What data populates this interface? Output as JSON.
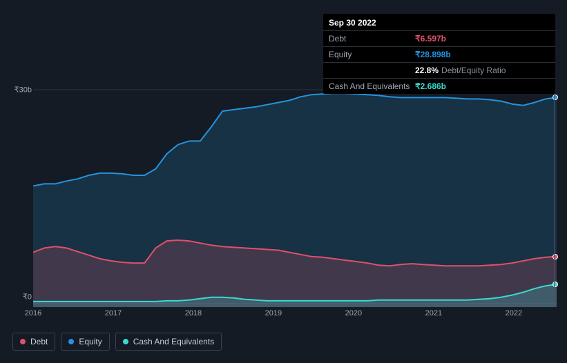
{
  "chart": {
    "type": "area",
    "background_color": "#151b24",
    "plot_background": "#1a2230",
    "grid_color": "#2a3442",
    "yaxis": {
      "labels": [
        "₹30b",
        "₹0"
      ],
      "positions": [
        5,
        305
      ],
      "lim": [
        0,
        30
      ],
      "tick_values": [
        0,
        30
      ]
    },
    "xaxis": {
      "labels": [
        "2016",
        "2017",
        "2018",
        "2019",
        "2020",
        "2021",
        "2022"
      ],
      "positions_pct": [
        0,
        15.3,
        30.6,
        45.9,
        61.2,
        76.5,
        91.8
      ]
    },
    "series": [
      {
        "name": "Equity",
        "color": "#2394df",
        "fill": "rgba(35,148,223,0.18)",
        "values": [
          16.5,
          16.8,
          16.8,
          17.2,
          17.5,
          18.0,
          18.3,
          18.3,
          18.2,
          18.0,
          18.0,
          18.9,
          21.0,
          22.3,
          22.8,
          22.8,
          24.8,
          27.0,
          27.2,
          27.4,
          27.6,
          27.9,
          28.2,
          28.5,
          29.0,
          29.3,
          29.4,
          29.5,
          29.5,
          29.4,
          29.3,
          29.2,
          29.0,
          28.9,
          28.9,
          28.9,
          28.9,
          28.9,
          28.8,
          28.7,
          28.7,
          28.6,
          28.4,
          28.0,
          27.8,
          28.2,
          28.7,
          28.9
        ]
      },
      {
        "name": "Debt",
        "color": "#e0506a",
        "fill": "rgba(224,80,106,0.22)",
        "values": [
          7.2,
          7.8,
          8.0,
          7.8,
          7.3,
          6.8,
          6.3,
          6.0,
          5.8,
          5.7,
          5.7,
          7.8,
          8.8,
          8.9,
          8.8,
          8.5,
          8.2,
          8.0,
          7.9,
          7.8,
          7.7,
          7.6,
          7.5,
          7.2,
          6.9,
          6.6,
          6.5,
          6.3,
          6.1,
          5.9,
          5.7,
          5.4,
          5.3,
          5.5,
          5.6,
          5.5,
          5.4,
          5.3,
          5.3,
          5.3,
          5.3,
          5.4,
          5.5,
          5.7,
          6.0,
          6.3,
          6.5,
          6.6
        ]
      },
      {
        "name": "Cash And Equivalents",
        "color": "#3adad0",
        "fill": "rgba(58,218,208,0.22)",
        "values": [
          0.3,
          0.3,
          0.3,
          0.3,
          0.3,
          0.3,
          0.3,
          0.3,
          0.3,
          0.3,
          0.3,
          0.3,
          0.4,
          0.4,
          0.5,
          0.7,
          0.9,
          0.9,
          0.8,
          0.6,
          0.5,
          0.4,
          0.4,
          0.4,
          0.4,
          0.4,
          0.4,
          0.4,
          0.4,
          0.4,
          0.4,
          0.5,
          0.5,
          0.5,
          0.5,
          0.5,
          0.5,
          0.5,
          0.5,
          0.5,
          0.6,
          0.7,
          0.9,
          1.2,
          1.6,
          2.1,
          2.5,
          2.7
        ]
      }
    ],
    "line_width": 2,
    "vline_pct": 99.5
  },
  "tooltip": {
    "date": "Sep 30 2022",
    "rows": [
      {
        "label": "Debt",
        "value": "₹6.597b",
        "color": "#e0506a"
      },
      {
        "label": "Equity",
        "value": "₹28.898b",
        "color": "#2394df"
      },
      {
        "label": "",
        "value": "22.8%",
        "extra": "Debt/Equity Ratio",
        "color": "#ffffff"
      },
      {
        "label": "Cash And Equivalents",
        "value": "₹2.686b",
        "color": "#3adad0"
      }
    ]
  },
  "legend": [
    {
      "label": "Debt",
      "color": "#e0506a"
    },
    {
      "label": "Equity",
      "color": "#2394df"
    },
    {
      "label": "Cash And Equivalents",
      "color": "#3adad0"
    }
  ]
}
